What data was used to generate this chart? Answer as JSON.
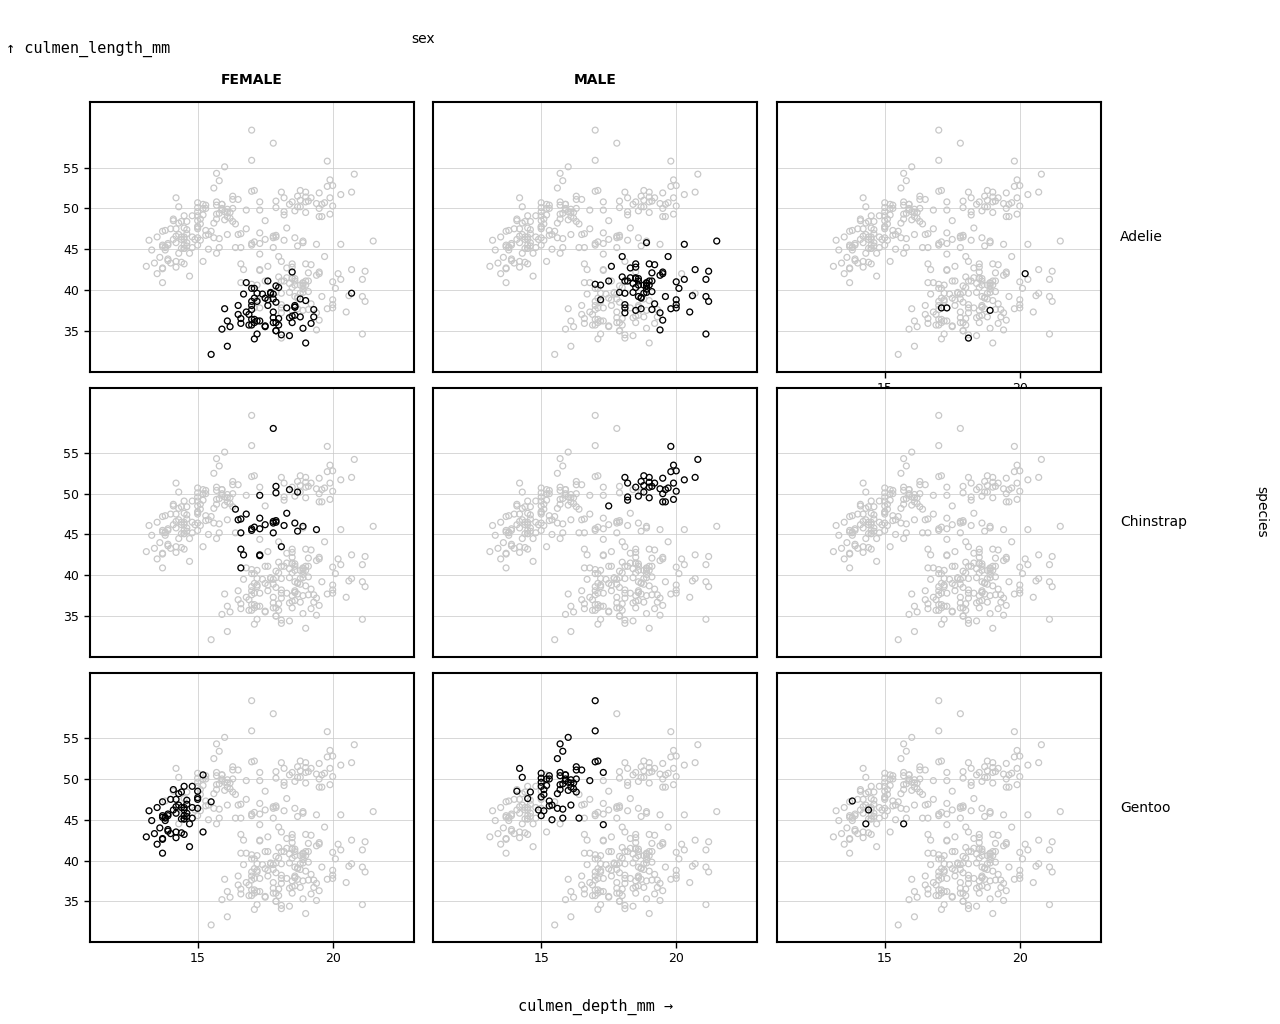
{
  "title_y": "↑ culmen_length_mm",
  "title_x": "culmen_depth_mm →",
  "col_labels": [
    "FEMALE",
    "MALE",
    ""
  ],
  "row_labels": [
    "Adelie",
    "Chinstrap",
    "Gentoo"
  ],
  "col_header": "sex",
  "species_label": "species",
  "xlim": [
    11,
    23
  ],
  "ylim": [
    30,
    63
  ],
  "xticks": [
    15,
    20
  ],
  "yticks": [
    35,
    40,
    45,
    50,
    55
  ],
  "background_color": "#ffffff",
  "grid_color": "#c8c8c8",
  "bg_scatter_color": "#c8c8c8",
  "fg_scatter_color": "#000000",
  "marker_size": 18,
  "marker_lw": 0.9,
  "title_fontsize": 11,
  "label_fontsize": 10,
  "tick_fontsize": 9,
  "col_header_fontsize": 10,
  "row_label_fontsize": 10,
  "species_fontsize": 10
}
